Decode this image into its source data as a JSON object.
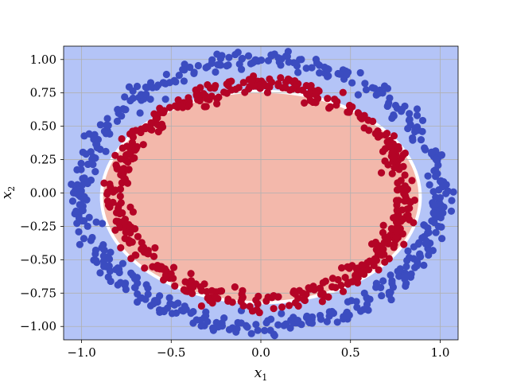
{
  "chart_data": {
    "type": "scatter",
    "title": "",
    "xlabel": "x",
    "xlabel_sub": "1",
    "ylabel": "x",
    "ylabel_sub": "2",
    "xlim": [
      -1.1,
      1.1
    ],
    "ylim": [
      -1.1,
      1.1
    ],
    "xticks": [
      -1.0,
      -0.5,
      0.0,
      0.5,
      1.0
    ],
    "xtick_labels": [
      "−1.0",
      "−0.5",
      "0.0",
      "0.5",
      "1.0"
    ],
    "yticks": [
      1.0,
      0.75,
      0.5,
      0.25,
      0.0,
      -0.25,
      -0.5,
      -0.75,
      -1.0
    ],
    "ytick_labels": [
      "1.00",
      "0.75",
      "0.50",
      "0.25",
      "0.00",
      "−0.25",
      "−0.50",
      "−0.75",
      "−1.00"
    ],
    "grid": true,
    "legend": "none",
    "decision_regions": [
      {
        "class": 0,
        "color": "#b4c4f7",
        "region": "outside boundary"
      },
      {
        "class": 1,
        "color": "#f3b8ab",
        "region": "inside ellipse",
        "center": [
          0.0,
          -0.03
        ],
        "radius_x": 0.88,
        "radius_y": 0.78
      }
    ],
    "series": [
      {
        "class": 0,
        "color": "#3b4cc0",
        "shape": "ring",
        "radius": 1.0,
        "noise": 0.035,
        "count": 500
      },
      {
        "class": 1,
        "color": "#b40426",
        "shape": "ring",
        "radius": 0.8,
        "noise": 0.035,
        "count": 500
      }
    ]
  }
}
